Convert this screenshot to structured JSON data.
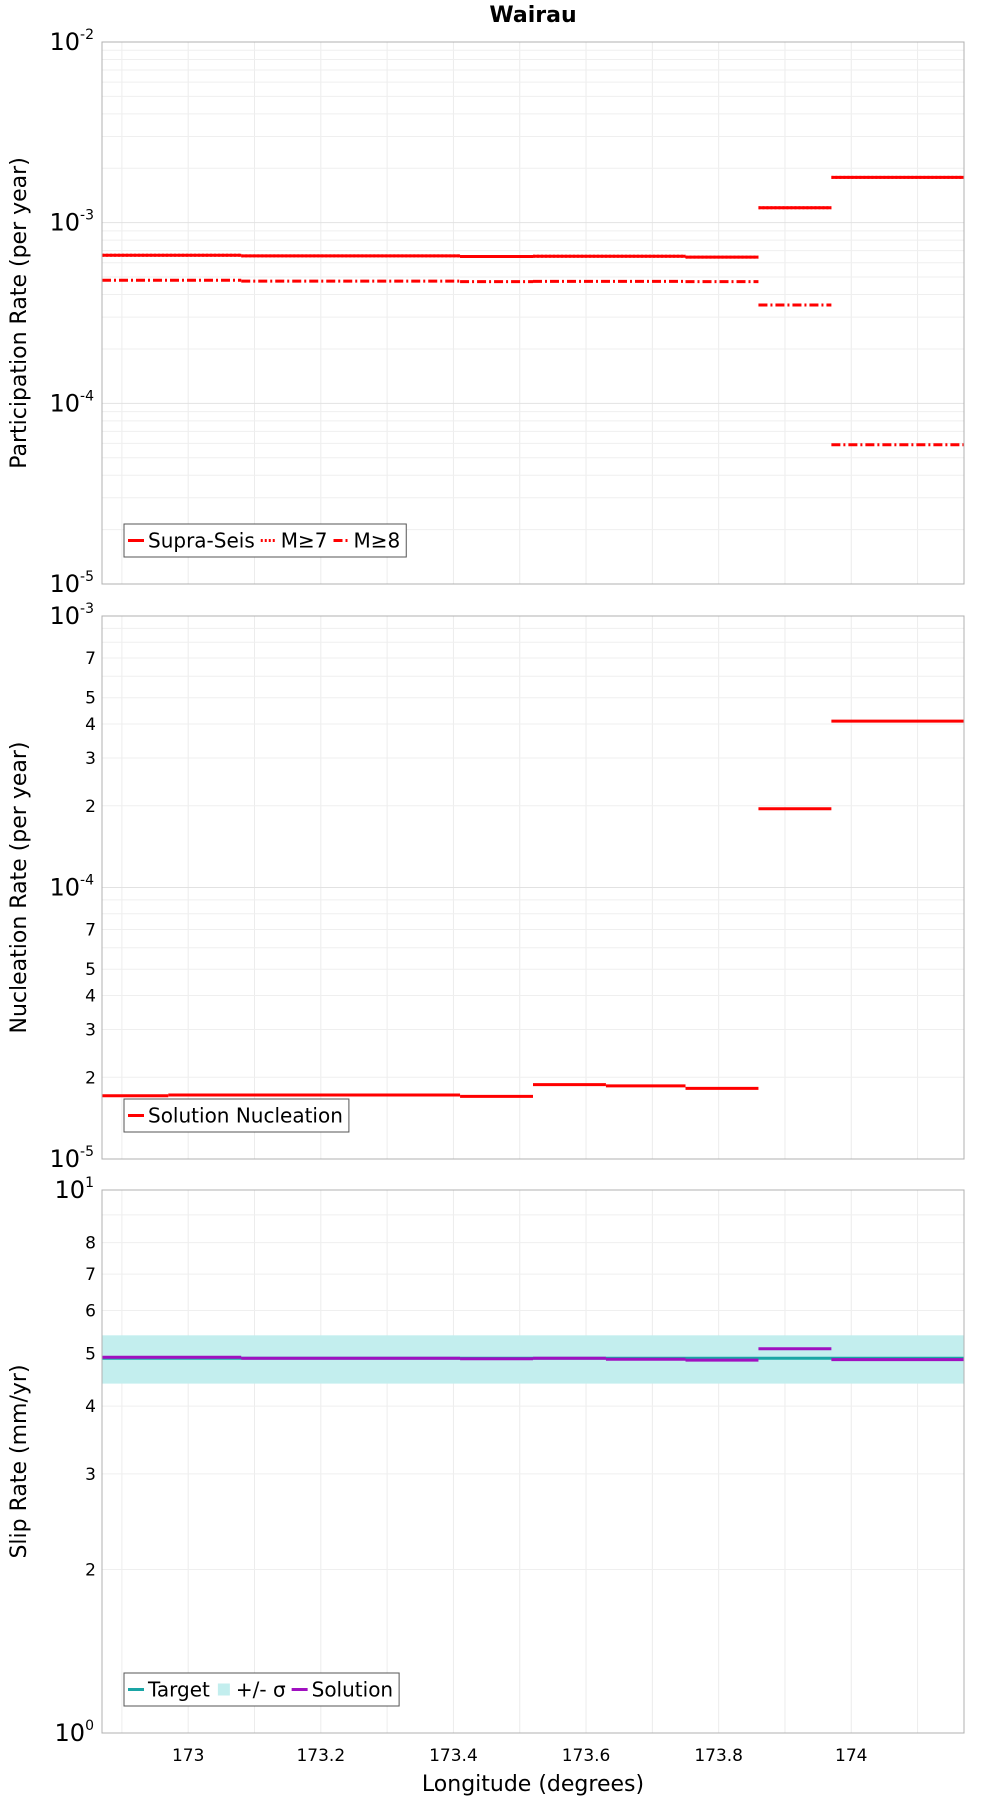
{
  "chart_data": [
    {
      "type": "line",
      "panel": "participation",
      "title": "Wairau",
      "ylabel": "Participation Rate (per year)",
      "yscale": "log",
      "ylim": [
        1e-05,
        0.01
      ],
      "y_tick_mantissa": "10",
      "y_tick_exponents": [
        "-5",
        "-4",
        "-3",
        "-2"
      ],
      "legend_placement": "bottom-left",
      "series": [
        {
          "name": "Supra-Seis",
          "color": "#ff0000",
          "dash": "solid",
          "segments": [
            {
              "x": [
                172.87,
                173.08
              ],
              "y": 0.00066
            },
            {
              "x": [
                173.08,
                173.41
              ],
              "y": 0.000655
            },
            {
              "x": [
                173.41,
                173.52
              ],
              "y": 0.00065
            },
            {
              "x": [
                173.52,
                173.75
              ],
              "y": 0.000652
            },
            {
              "x": [
                173.75,
                173.86
              ],
              "y": 0.000645
            },
            {
              "x": [
                173.86,
                173.97
              ],
              "y": 0.00121
            },
            {
              "x": [
                173.97,
                174.17
              ],
              "y": 0.00178
            }
          ]
        },
        {
          "name": "M≥7",
          "color": "#ff0000",
          "dash": "dotted",
          "segments": [
            {
              "x": [
                172.87,
                173.08
              ],
              "y": 0.00066
            },
            {
              "x": [
                173.08,
                173.41
              ],
              "y": 0.000655
            },
            {
              "x": [
                173.41,
                173.52
              ],
              "y": 0.00065
            },
            {
              "x": [
                173.52,
                173.75
              ],
              "y": 0.000652
            },
            {
              "x": [
                173.75,
                173.86
              ],
              "y": 0.000645
            },
            {
              "x": [
                173.86,
                173.97
              ],
              "y": 0.00121
            },
            {
              "x": [
                173.97,
                174.17
              ],
              "y": 0.00178
            }
          ]
        },
        {
          "name": "M≥8",
          "color": "#ff0000",
          "dash": "dashdot",
          "segments": [
            {
              "x": [
                172.87,
                173.08
              ],
              "y": 0.00048
            },
            {
              "x": [
                173.08,
                173.41
              ],
              "y": 0.000475
            },
            {
              "x": [
                173.41,
                173.52
              ],
              "y": 0.000472
            },
            {
              "x": [
                173.52,
                173.75
              ],
              "y": 0.000473
            },
            {
              "x": [
                173.75,
                173.86
              ],
              "y": 0.000472
            },
            {
              "x": [
                173.86,
                173.97
              ],
              "y": 0.00035
            },
            {
              "x": [
                173.97,
                174.17
              ],
              "y": 5.9e-05
            }
          ]
        }
      ]
    },
    {
      "type": "line",
      "panel": "nucleation",
      "ylabel": "Nucleation Rate (per year)",
      "yscale": "log",
      "ylim": [
        1e-05,
        0.001
      ],
      "y_tick_mantissa": "10",
      "y_tick_exponents": [
        "-5",
        "-4",
        "-3"
      ],
      "y_minor_labels": [
        "2",
        "3",
        "4",
        "5",
        "7",
        "2",
        "3",
        "4",
        "5",
        "7"
      ],
      "legend_placement": "bottom-left",
      "series": [
        {
          "name": "Solution Nucleation",
          "color": "#ff0000",
          "dash": "solid",
          "segments": [
            {
              "x": [
                172.87,
                172.97
              ],
              "y": 1.71e-05
            },
            {
              "x": [
                172.97,
                173.41
              ],
              "y": 1.72e-05
            },
            {
              "x": [
                173.41,
                173.52
              ],
              "y": 1.7e-05
            },
            {
              "x": [
                173.52,
                173.63
              ],
              "y": 1.88e-05
            },
            {
              "x": [
                173.63,
                173.75
              ],
              "y": 1.86e-05
            },
            {
              "x": [
                173.75,
                173.86
              ],
              "y": 1.82e-05
            },
            {
              "x": [
                173.86,
                173.97
              ],
              "y": 0.000195
            },
            {
              "x": [
                173.97,
                174.17
              ],
              "y": 0.00041
            }
          ]
        }
      ]
    },
    {
      "type": "line",
      "panel": "slip",
      "ylabel": "Slip Rate (mm/yr)",
      "xlabel": "Longitude (degrees)",
      "yscale": "log",
      "ylim": [
        1,
        10
      ],
      "xlim": [
        172.87,
        174.17
      ],
      "x_ticks": [
        "173",
        "173.2",
        "173.4",
        "173.6",
        "173.8",
        "174"
      ],
      "y_tick_mantissa": "10",
      "y_tick_exponents": [
        "0",
        "1"
      ],
      "y_minor_labels": [
        "2",
        "3",
        "4",
        "5",
        "6",
        "7",
        "8"
      ],
      "legend_placement": "bottom-left",
      "sigma_band": {
        "name": "+/- σ",
        "color": "#c3eeee",
        "y": [
          4.4,
          5.4
        ]
      },
      "series": [
        {
          "name": "Target",
          "color": "#1aa5a5",
          "dash": "solid",
          "segments": [
            {
              "x": [
                172.87,
                174.17
              ],
              "y": 4.9
            }
          ]
        },
        {
          "name": "Solution",
          "color": "#a010c0",
          "dash": "solid",
          "segments": [
            {
              "x": [
                172.87,
                173.08
              ],
              "y": 4.92
            },
            {
              "x": [
                173.08,
                173.41
              ],
              "y": 4.9
            },
            {
              "x": [
                173.41,
                173.52
              ],
              "y": 4.89
            },
            {
              "x": [
                173.52,
                173.63
              ],
              "y": 4.9
            },
            {
              "x": [
                173.63,
                173.75
              ],
              "y": 4.88
            },
            {
              "x": [
                173.75,
                173.86
              ],
              "y": 4.86
            },
            {
              "x": [
                173.86,
                173.97
              ],
              "y": 5.1
            },
            {
              "x": [
                173.97,
                174.17
              ],
              "y": 4.87
            }
          ]
        }
      ]
    }
  ]
}
